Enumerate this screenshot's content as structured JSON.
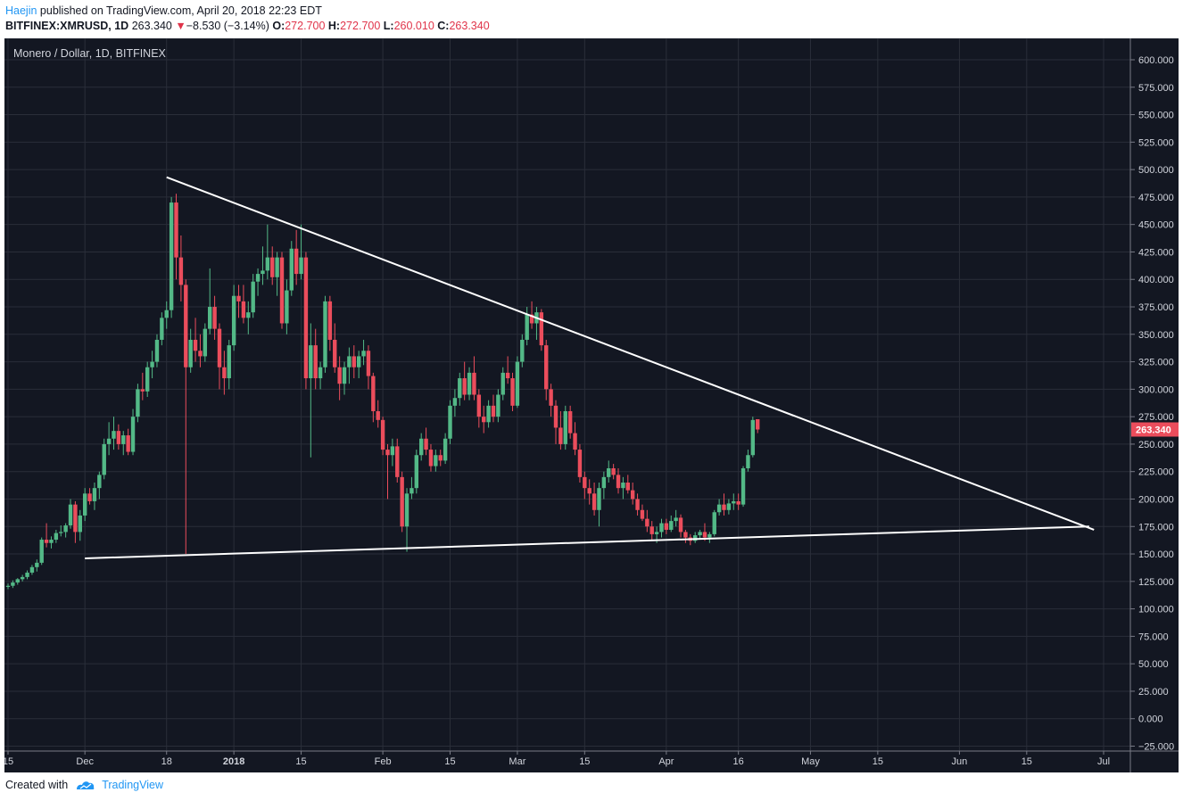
{
  "header": {
    "author": "Haejin",
    "published_text": " published on TradingView.com, April 20, 2018 22:23 EDT",
    "symbol": "BITFINEX:XMRUSD, 1D",
    "last": "263.340",
    "arrow": "▼",
    "change": "−8.530 (−3.14%)",
    "o_label": "O:",
    "o_value": "272.700",
    "h_label": "H:",
    "h_value": "272.700",
    "l_label": "L:",
    "l_value": "260.010",
    "c_label": "C:",
    "c_value": "263.340"
  },
  "footer": {
    "created_with": "Created with",
    "brand": "TradingView"
  },
  "colors": {
    "background": "#131722",
    "grid": "#2a2e39",
    "axis_text": "#d1d4dc",
    "up": "#53b987",
    "down": "#eb4d5c",
    "trendline": "#ffffff",
    "price_label": "#eb4d5c"
  },
  "chart_data": {
    "type": "candlestick",
    "title": "Monero / Dollar, 1D, BITFINEX",
    "y_axis": {
      "ylim": [
        -25,
        600
      ],
      "ticks": [
        "600.000",
        "575.000",
        "550.000",
        "525.000",
        "500.000",
        "475.000",
        "450.000",
        "425.000",
        "400.000",
        "375.000",
        "350.000",
        "325.000",
        "300.000",
        "275.000",
        "250.000",
        "225.000",
        "200.000",
        "175.000",
        "150.000",
        "125.000",
        "100.000",
        "75.000",
        "50.000",
        "25.000",
        "0.000",
        "−25.000"
      ],
      "current_price_label": "263.340",
      "current_price": 263.34
    },
    "x_axis": {
      "range": [
        "2017-11-15",
        "2018-07-01"
      ],
      "ticks": [
        {
          "date": "2017-11-15",
          "label": "15"
        },
        {
          "date": "2017-12-01",
          "label": "Dec"
        },
        {
          "date": "2017-12-18",
          "label": "18"
        },
        {
          "date": "2018-01-01",
          "label": "2018"
        },
        {
          "date": "2018-01-15",
          "label": "15"
        },
        {
          "date": "2018-02-01",
          "label": "Feb"
        },
        {
          "date": "2018-02-15",
          "label": "15"
        },
        {
          "date": "2018-03-01",
          "label": "Mar"
        },
        {
          "date": "2018-03-15",
          "label": "15"
        },
        {
          "date": "2018-04-01",
          "label": "Apr"
        },
        {
          "date": "2018-04-16",
          "label": "16"
        },
        {
          "date": "2018-05-01",
          "label": "May"
        },
        {
          "date": "2018-05-15",
          "label": "15"
        },
        {
          "date": "2018-06-01",
          "label": "Jun"
        },
        {
          "date": "2018-06-15",
          "label": "15"
        },
        {
          "date": "2018-07-01",
          "label": "Jul"
        }
      ]
    },
    "trendlines": [
      {
        "name": "upper",
        "from": {
          "date": "2017-12-18",
          "price": 493
        },
        "to": {
          "date": "2018-06-29",
          "price": 172
        }
      },
      {
        "name": "lower",
        "from": {
          "date": "2017-12-01",
          "price": 146
        },
        "to": {
          "date": "2018-06-28",
          "price": 175
        }
      }
    ],
    "candles_note": "daily OHLC estimated from chart",
    "candles": [
      [
        "2017-11-15",
        120,
        123,
        118,
        121
      ],
      [
        "2017-11-16",
        121,
        126,
        119,
        124
      ],
      [
        "2017-11-17",
        124,
        128,
        122,
        127
      ],
      [
        "2017-11-18",
        127,
        131,
        125,
        129
      ],
      [
        "2017-11-19",
        129,
        135,
        127,
        133
      ],
      [
        "2017-11-20",
        133,
        140,
        131,
        138
      ],
      [
        "2017-11-21",
        138,
        145,
        134,
        142
      ],
      [
        "2017-11-22",
        142,
        165,
        140,
        163
      ],
      [
        "2017-11-23",
        163,
        178,
        156,
        160
      ],
      [
        "2017-11-24",
        160,
        166,
        155,
        163
      ],
      [
        "2017-11-25",
        163,
        172,
        160,
        169
      ],
      [
        "2017-11-26",
        169,
        176,
        166,
        170
      ],
      [
        "2017-11-27",
        170,
        178,
        165,
        176
      ],
      [
        "2017-11-28",
        176,
        200,
        173,
        195
      ],
      [
        "2017-11-29",
        195,
        198,
        160,
        170
      ],
      [
        "2017-11-30",
        170,
        190,
        162,
        185
      ],
      [
        "2017-12-01",
        185,
        210,
        180,
        205
      ],
      [
        "2017-12-02",
        205,
        210,
        195,
        198
      ],
      [
        "2017-12-03",
        198,
        215,
        190,
        210
      ],
      [
        "2017-12-04",
        210,
        225,
        200,
        222
      ],
      [
        "2017-12-05",
        222,
        255,
        218,
        250
      ],
      [
        "2017-12-06",
        250,
        270,
        240,
        255
      ],
      [
        "2017-12-07",
        255,
        275,
        245,
        262
      ],
      [
        "2017-12-08",
        262,
        268,
        245,
        250
      ],
      [
        "2017-12-09",
        250,
        262,
        240,
        258
      ],
      [
        "2017-12-10",
        258,
        264,
        240,
        243
      ],
      [
        "2017-12-11",
        243,
        282,
        240,
        275
      ],
      [
        "2017-12-12",
        275,
        305,
        270,
        300
      ],
      [
        "2017-12-13",
        300,
        315,
        290,
        298
      ],
      [
        "2017-12-14",
        298,
        325,
        293,
        320
      ],
      [
        "2017-12-15",
        320,
        335,
        310,
        325
      ],
      [
        "2017-12-16",
        325,
        350,
        320,
        345
      ],
      [
        "2017-12-17",
        345,
        370,
        340,
        365
      ],
      [
        "2017-12-18",
        365,
        380,
        355,
        372
      ],
      [
        "2017-12-19",
        372,
        475,
        365,
        470
      ],
      [
        "2017-12-20",
        470,
        478,
        400,
        420
      ],
      [
        "2017-12-21",
        420,
        440,
        380,
        395
      ],
      [
        "2017-12-22",
        395,
        400,
        150,
        320
      ],
      [
        "2017-12-23",
        320,
        355,
        315,
        345
      ],
      [
        "2017-12-24",
        345,
        365,
        325,
        335
      ],
      [
        "2017-12-25",
        335,
        350,
        320,
        330
      ],
      [
        "2017-12-26",
        330,
        360,
        325,
        355
      ],
      [
        "2017-12-27",
        355,
        410,
        350,
        375
      ],
      [
        "2017-12-28",
        375,
        385,
        345,
        355
      ],
      [
        "2017-12-29",
        355,
        360,
        300,
        320
      ],
      [
        "2017-12-30",
        320,
        335,
        295,
        310
      ],
      [
        "2017-12-31",
        310,
        345,
        300,
        340
      ],
      [
        "2018-01-01",
        340,
        395,
        335,
        385
      ],
      [
        "2018-01-02",
        385,
        395,
        365,
        380
      ],
      [
        "2018-01-03",
        380,
        395,
        360,
        365
      ],
      [
        "2018-01-04",
        365,
        380,
        350,
        370
      ],
      [
        "2018-01-05",
        370,
        405,
        365,
        398
      ],
      [
        "2018-01-06",
        398,
        410,
        385,
        405
      ],
      [
        "2018-01-07",
        405,
        430,
        395,
        408
      ],
      [
        "2018-01-08",
        408,
        450,
        400,
        420
      ],
      [
        "2018-01-09",
        420,
        430,
        395,
        402
      ],
      [
        "2018-01-10",
        402,
        425,
        385,
        420
      ],
      [
        "2018-01-11",
        420,
        425,
        355,
        360
      ],
      [
        "2018-01-12",
        360,
        400,
        350,
        390
      ],
      [
        "2018-01-13",
        390,
        435,
        385,
        428
      ],
      [
        "2018-01-14",
        428,
        445,
        395,
        405
      ],
      [
        "2018-01-15",
        405,
        450,
        400,
        420
      ],
      [
        "2018-01-16",
        420,
        425,
        300,
        310
      ],
      [
        "2018-01-17",
        310,
        360,
        238,
        340
      ],
      [
        "2018-01-18",
        340,
        355,
        300,
        310
      ],
      [
        "2018-01-19",
        310,
        325,
        300,
        320
      ],
      [
        "2018-01-20",
        320,
        385,
        315,
        380
      ],
      [
        "2018-01-21",
        380,
        385,
        335,
        345
      ],
      [
        "2018-01-22",
        345,
        360,
        315,
        320
      ],
      [
        "2018-01-23",
        320,
        330,
        290,
        305
      ],
      [
        "2018-01-24",
        305,
        325,
        295,
        320
      ],
      [
        "2018-01-25",
        320,
        338,
        305,
        330
      ],
      [
        "2018-01-26",
        330,
        340,
        310,
        320
      ],
      [
        "2018-01-27",
        320,
        335,
        310,
        330
      ],
      [
        "2018-01-28",
        330,
        345,
        322,
        335
      ],
      [
        "2018-01-29",
        335,
        340,
        300,
        312
      ],
      [
        "2018-01-30",
        312,
        315,
        270,
        280
      ],
      [
        "2018-01-31",
        280,
        290,
        265,
        272
      ],
      [
        "2018-02-01",
        272,
        275,
        240,
        245
      ],
      [
        "2018-02-02",
        245,
        250,
        200,
        240
      ],
      [
        "2018-02-03",
        240,
        255,
        230,
        248
      ],
      [
        "2018-02-04",
        248,
        255,
        215,
        220
      ],
      [
        "2018-02-05",
        220,
        225,
        170,
        175
      ],
      [
        "2018-02-06",
        175,
        210,
        152,
        205
      ],
      [
        "2018-02-07",
        205,
        220,
        200,
        210
      ],
      [
        "2018-02-08",
        210,
        245,
        205,
        240
      ],
      [
        "2018-02-09",
        240,
        260,
        235,
        255
      ],
      [
        "2018-02-10",
        255,
        265,
        240,
        245
      ],
      [
        "2018-02-11",
        245,
        250,
        225,
        230
      ],
      [
        "2018-02-12",
        230,
        245,
        225,
        240
      ],
      [
        "2018-02-13",
        240,
        245,
        230,
        235
      ],
      [
        "2018-02-14",
        235,
        260,
        232,
        255
      ],
      [
        "2018-02-15",
        255,
        290,
        250,
        285
      ],
      [
        "2018-02-16",
        285,
        300,
        275,
        292
      ],
      [
        "2018-02-17",
        292,
        315,
        285,
        310
      ],
      [
        "2018-02-18",
        310,
        325,
        290,
        295
      ],
      [
        "2018-02-19",
        295,
        320,
        290,
        315
      ],
      [
        "2018-02-20",
        315,
        330,
        290,
        295
      ],
      [
        "2018-02-21",
        295,
        300,
        265,
        275
      ],
      [
        "2018-02-22",
        275,
        285,
        260,
        270
      ],
      [
        "2018-02-23",
        270,
        290,
        265,
        285
      ],
      [
        "2018-02-24",
        285,
        295,
        270,
        275
      ],
      [
        "2018-02-25",
        275,
        300,
        270,
        295
      ],
      [
        "2018-02-26",
        295,
        320,
        290,
        315
      ],
      [
        "2018-02-27",
        315,
        330,
        305,
        310
      ],
      [
        "2018-02-28",
        310,
        315,
        280,
        285
      ],
      [
        "2018-03-01",
        285,
        330,
        283,
        325
      ],
      [
        "2018-03-02",
        325,
        350,
        320,
        345
      ],
      [
        "2018-03-03",
        345,
        375,
        340,
        368
      ],
      [
        "2018-03-04",
        368,
        380,
        355,
        360
      ],
      [
        "2018-03-05",
        360,
        375,
        345,
        370
      ],
      [
        "2018-03-06",
        370,
        373,
        335,
        340
      ],
      [
        "2018-03-07",
        340,
        345,
        290,
        300
      ],
      [
        "2018-03-08",
        300,
        305,
        275,
        285
      ],
      [
        "2018-03-09",
        285,
        290,
        250,
        265
      ],
      [
        "2018-03-10",
        265,
        280,
        245,
        250
      ],
      [
        "2018-03-11",
        250,
        285,
        245,
        280
      ],
      [
        "2018-03-12",
        280,
        285,
        255,
        260
      ],
      [
        "2018-03-13",
        260,
        270,
        240,
        245
      ],
      [
        "2018-03-14",
        245,
        250,
        215,
        220
      ],
      [
        "2018-03-15",
        220,
        225,
        200,
        210
      ],
      [
        "2018-03-16",
        210,
        218,
        195,
        205
      ],
      [
        "2018-03-17",
        205,
        215,
        185,
        190
      ],
      [
        "2018-03-18",
        190,
        215,
        175,
        210
      ],
      [
        "2018-03-19",
        210,
        225,
        200,
        220
      ],
      [
        "2018-03-20",
        220,
        235,
        215,
        228
      ],
      [
        "2018-03-21",
        228,
        232,
        218,
        222
      ],
      [
        "2018-03-22",
        222,
        228,
        205,
        210
      ],
      [
        "2018-03-23",
        210,
        220,
        200,
        215
      ],
      [
        "2018-03-24",
        215,
        222,
        205,
        208
      ],
      [
        "2018-03-25",
        208,
        215,
        195,
        200
      ],
      [
        "2018-03-26",
        200,
        205,
        185,
        190
      ],
      [
        "2018-03-27",
        190,
        195,
        180,
        182
      ],
      [
        "2018-03-28",
        182,
        190,
        170,
        175
      ],
      [
        "2018-03-29",
        175,
        180,
        162,
        168
      ],
      [
        "2018-03-30",
        168,
        175,
        160,
        170
      ],
      [
        "2018-03-31",
        170,
        182,
        165,
        178
      ],
      [
        "2018-04-01",
        178,
        182,
        168,
        172
      ],
      [
        "2018-04-02",
        172,
        185,
        170,
        180
      ],
      [
        "2018-04-03",
        180,
        190,
        175,
        183
      ],
      [
        "2018-04-04",
        183,
        186,
        165,
        170
      ],
      [
        "2018-04-05",
        170,
        172,
        160,
        165
      ],
      [
        "2018-04-06",
        165,
        168,
        158,
        162
      ],
      [
        "2018-04-07",
        162,
        170,
        160,
        167
      ],
      [
        "2018-04-08",
        167,
        172,
        163,
        170
      ],
      [
        "2018-04-09",
        170,
        178,
        162,
        165
      ],
      [
        "2018-04-10",
        165,
        170,
        160,
        168
      ],
      [
        "2018-04-11",
        168,
        190,
        166,
        188
      ],
      [
        "2018-04-12",
        188,
        200,
        185,
        195
      ],
      [
        "2018-04-13",
        195,
        205,
        185,
        190
      ],
      [
        "2018-04-14",
        190,
        200,
        186,
        196
      ],
      [
        "2018-04-15",
        196,
        205,
        190,
        198
      ],
      [
        "2018-04-16",
        198,
        205,
        190,
        195
      ],
      [
        "2018-04-17",
        195,
        230,
        193,
        228
      ],
      [
        "2018-04-18",
        228,
        245,
        225,
        240
      ],
      [
        "2018-04-19",
        240,
        275,
        238,
        272
      ],
      [
        "2018-04-20",
        272.7,
        272.7,
        260.01,
        263.34
      ]
    ]
  }
}
